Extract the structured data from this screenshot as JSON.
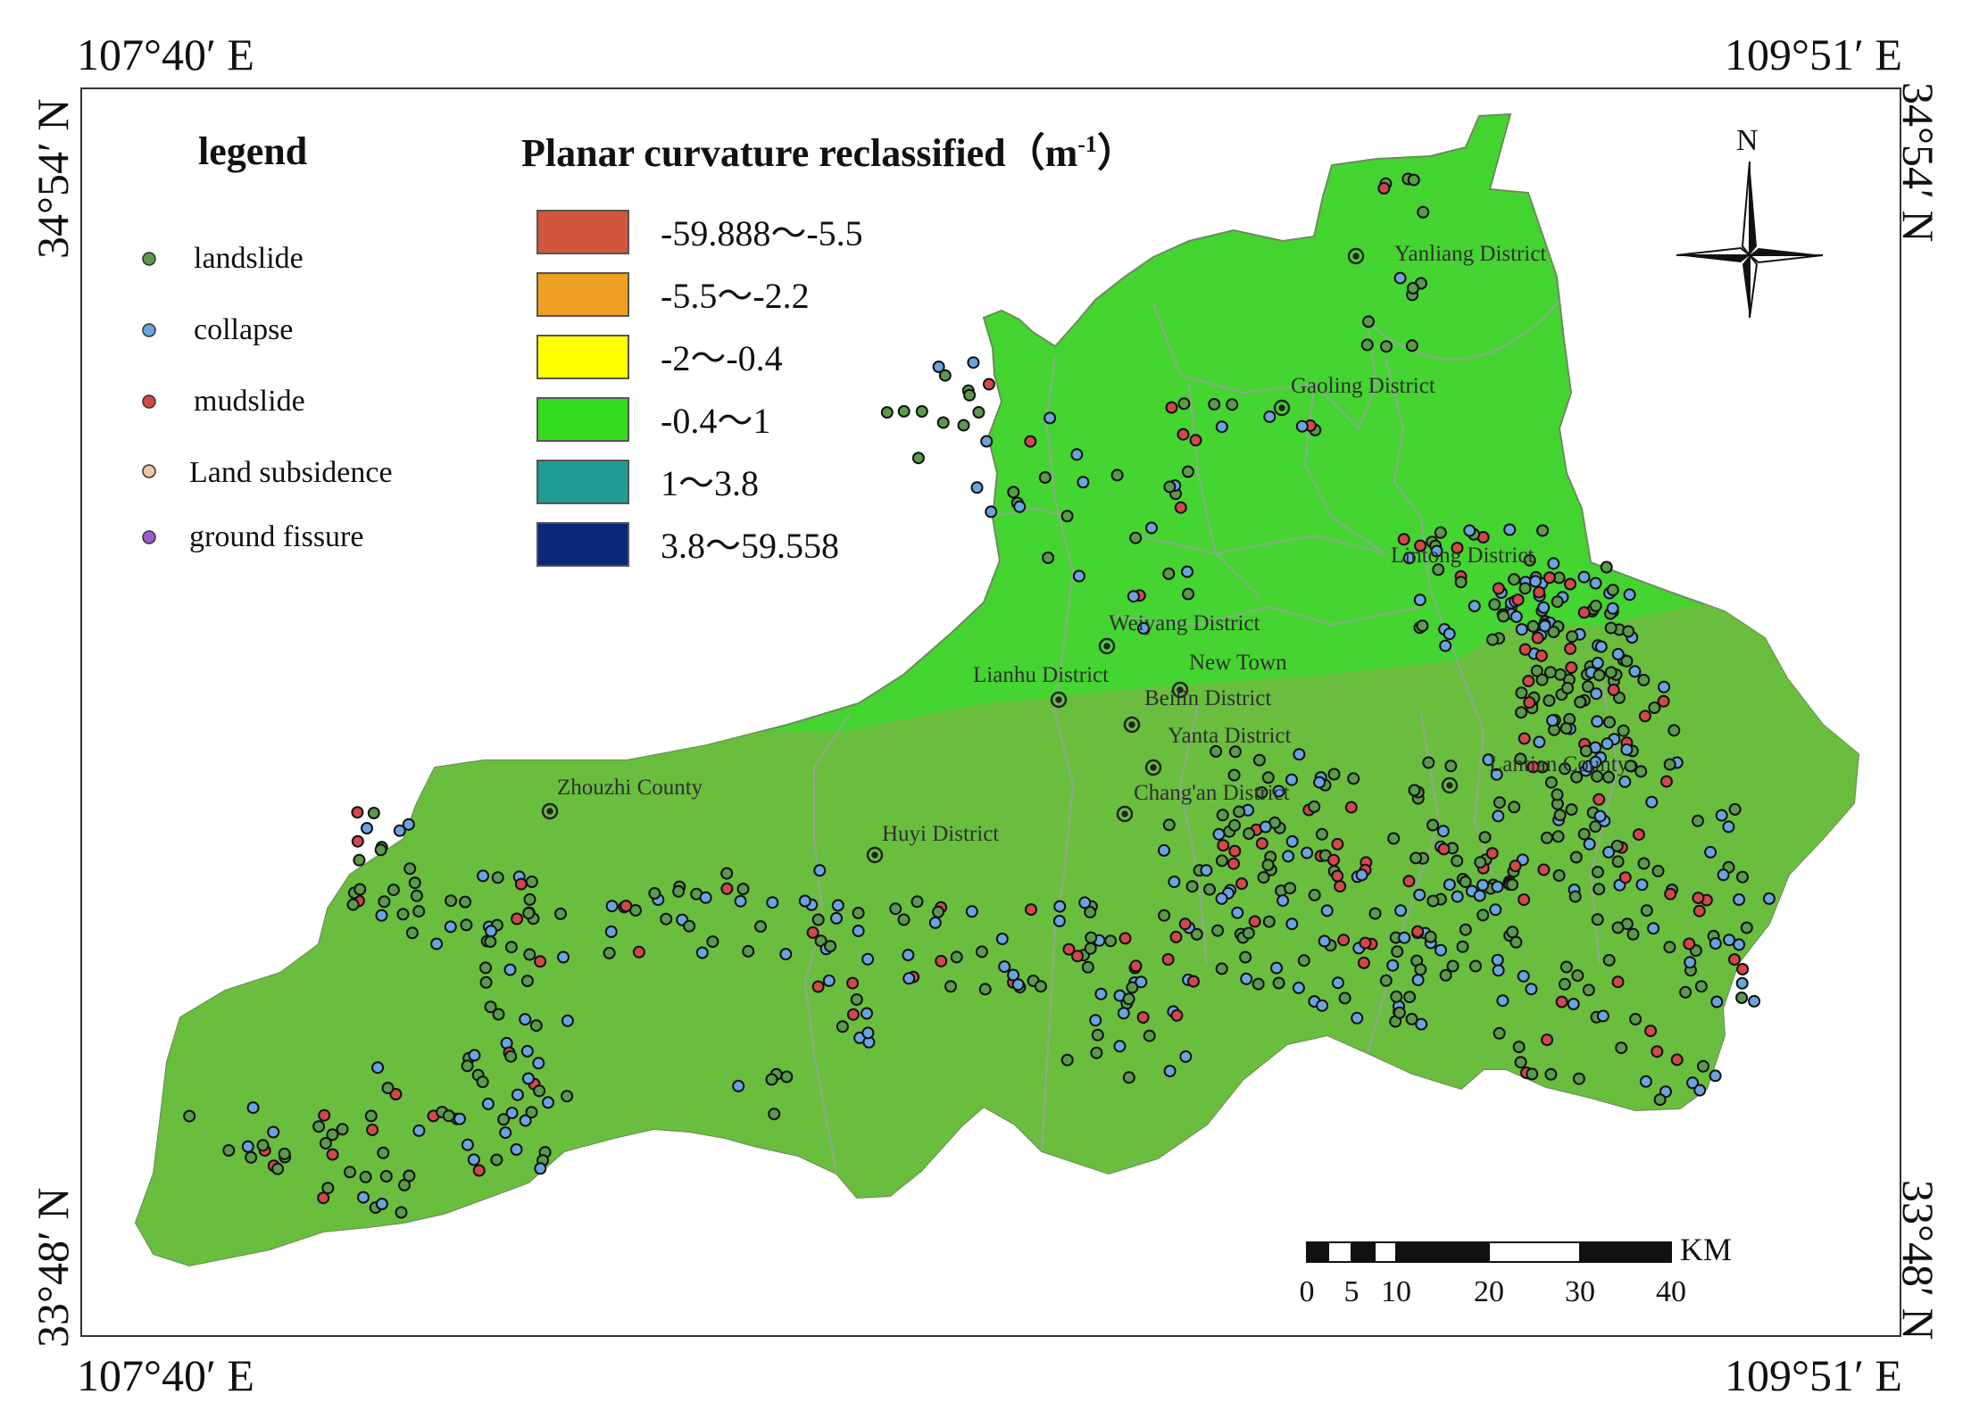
{
  "coords": {
    "top_left": "107°40′ E",
    "top_right": "109°51′ E",
    "bottom_left": "107°40′ E",
    "bottom_right": "109°51′ E",
    "left_top": "34°54′ N",
    "left_bottom": "33°48′ N",
    "right_top": "34°54′ N",
    "right_bottom": "33°48′ N"
  },
  "legend": {
    "title": "legend",
    "items": [
      {
        "label": "landslide",
        "color": "#5a9a4a"
      },
      {
        "label": "collapse",
        "color": "#6aa4e0"
      },
      {
        "label": "mudslide",
        "color": "#d24848"
      },
      {
        "label": "Land subsidence",
        "color": "#f2c4a4"
      },
      {
        "label": "ground fissure",
        "color": "#a05ad0"
      }
    ]
  },
  "curvature": {
    "title": "Planar curvature reclassified（m",
    "title_sup": "-1",
    "title_end": "）",
    "classes": [
      {
        "label": "-59.888～-5.5",
        "color": "#d2563c"
      },
      {
        "label": "-5.5～-2.2",
        "color": "#f0a020"
      },
      {
        "label": "-2～-0.4",
        "color": "#ffff00"
      },
      {
        "label": "-0.4～1",
        "color": "#35dc1e"
      },
      {
        "label": "1～3.8",
        "color": "#209c92"
      },
      {
        "label": "3.8～59.558",
        "color": "#0a2878"
      }
    ]
  },
  "north_arrow": {
    "label": "N",
    "icon": "compass-rose-icon"
  },
  "scale_bar": {
    "unit": "KM",
    "ticks": [
      "0",
      "5",
      "10",
      "20",
      "30",
      "40"
    ]
  },
  "districts": [
    "Yanliang District",
    "Gaoling District",
    "Lintong District",
    "Weiyang District",
    "New Town",
    "Lianhu District",
    "Beilin District",
    "Yanta District",
    "Chang'an District",
    "Lantian County",
    "Zhouzhi County",
    "Huyi District"
  ],
  "colors": {
    "plain_green": "#3ed82c",
    "mountain_green": "#67bf3a",
    "boundary": "#9aa3a0"
  }
}
